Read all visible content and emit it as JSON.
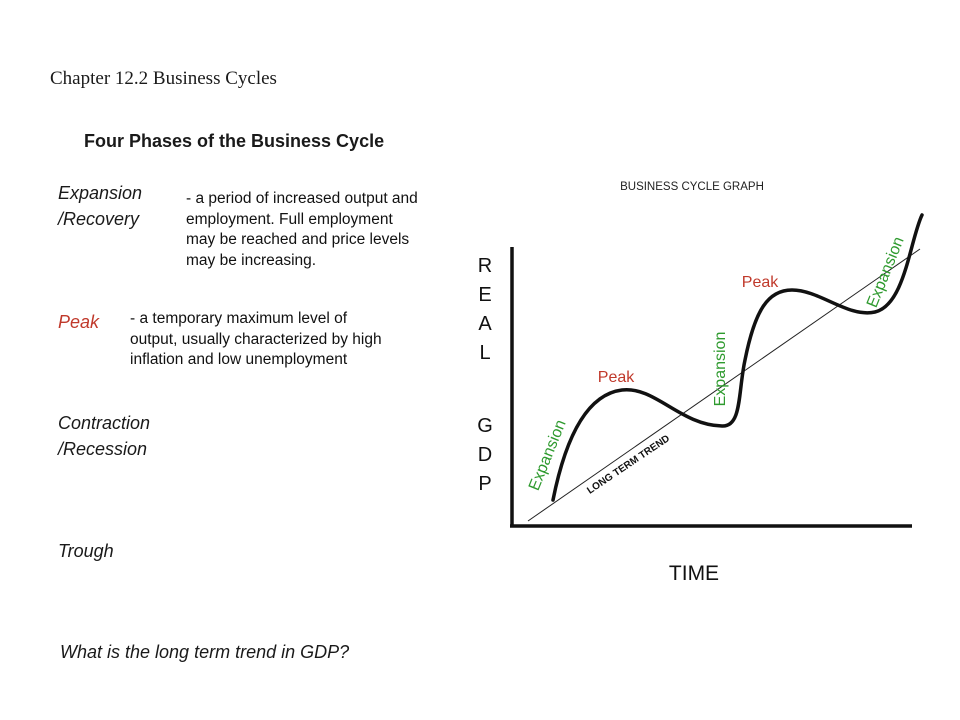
{
  "slide": {
    "chapter": "Chapter 12.2 Business Cycles",
    "heading": "Four Phases of the Business Cycle",
    "question": "What is the long term trend in GDP?"
  },
  "phases": [
    {
      "term_lines": [
        "Expansion",
        "/Recovery"
      ],
      "definition_lines": [
        "- a period of increased output and",
        "employment.  Full employment",
        "may be reached and price levels",
        "may be increasing."
      ]
    },
    {
      "term_lines": [
        "Peak"
      ],
      "definition_lines": [
        "- a temporary maximum level of",
        "output, usually characterized by high",
        "inflation and low unemployment"
      ]
    },
    {
      "term_lines": [
        "Contraction",
        "/Recession"
      ],
      "definition_lines": []
    },
    {
      "term_lines": [
        "Trough"
      ],
      "definition_lines": []
    }
  ],
  "graph": {
    "title": "BUSINESS CYCLE GRAPH",
    "y_axis_letters": [
      "R",
      "E",
      "A",
      "L",
      "G",
      "D",
      "P"
    ],
    "x_axis_label": "TIME",
    "trend_label": "LONG TERM TREND",
    "labels": {
      "peak_1": "Peak",
      "peak_2": "Peak",
      "expansion_1": "Expansion",
      "expansion_2": "Expansion",
      "expansion_3": "Expansion"
    },
    "colors": {
      "peak": "#c0392b",
      "expansion": "#2e9a2e",
      "curve": "#111111",
      "axes": "#111111"
    }
  }
}
